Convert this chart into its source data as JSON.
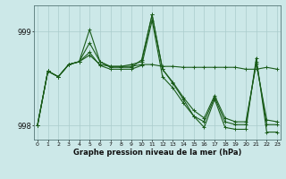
{
  "background_color": "#cce8e8",
  "grid_color": "#aacccc",
  "line_color": "#1a5c1a",
  "xlabel": "Graphe pression niveau de la mer (hPa)",
  "ylim": [
    997.85,
    999.28
  ],
  "xlim": [
    -0.3,
    23.3
  ],
  "yticks": [
    998,
    999
  ],
  "xticks": [
    0,
    1,
    2,
    3,
    4,
    5,
    6,
    7,
    8,
    9,
    10,
    11,
    12,
    13,
    14,
    15,
    16,
    17,
    18,
    19,
    20,
    21,
    22,
    23
  ],
  "s1": [
    998.0,
    998.58,
    998.52,
    998.65,
    998.68,
    998.75,
    998.65,
    998.63,
    998.63,
    998.63,
    998.65,
    998.65,
    998.63,
    998.63,
    998.62,
    998.62,
    998.62,
    998.62,
    998.62,
    998.62,
    998.6,
    998.6,
    998.62,
    998.6
  ],
  "s2": [
    998.0,
    998.58,
    998.52,
    998.65,
    998.68,
    999.02,
    998.68,
    998.63,
    998.63,
    998.65,
    998.68,
    999.18,
    998.6,
    998.45,
    998.28,
    998.1,
    997.98,
    998.28,
    997.98,
    997.96,
    997.96,
    998.72,
    997.93,
    997.93
  ],
  "s3": [
    998.0,
    998.58,
    998.52,
    998.65,
    998.68,
    998.88,
    998.68,
    998.62,
    998.62,
    998.62,
    998.7,
    999.18,
    998.6,
    998.46,
    998.3,
    998.16,
    998.08,
    998.32,
    998.08,
    998.04,
    998.04,
    998.66,
    998.06,
    998.04
  ],
  "s4": [
    998.0,
    998.58,
    998.52,
    998.65,
    998.68,
    998.78,
    998.64,
    998.6,
    998.6,
    998.6,
    998.64,
    999.12,
    998.52,
    998.4,
    998.24,
    998.1,
    998.04,
    998.3,
    998.04,
    998.01,
    998.01,
    998.68,
    998.01,
    998.01
  ]
}
